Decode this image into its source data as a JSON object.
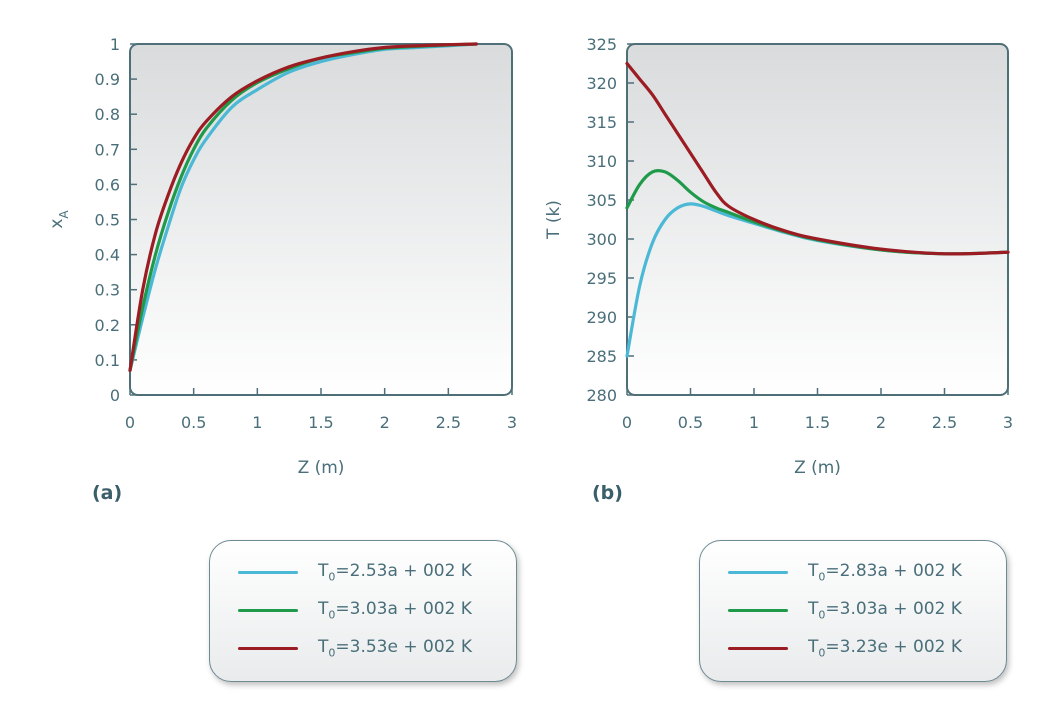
{
  "chart_data": [
    {
      "type": "line",
      "panel_label": "(a)",
      "xlabel": "Z (m)",
      "ylabel": "x",
      "ylabel_sub": "A",
      "xlim": [
        0,
        3
      ],
      "ylim": [
        0,
        1
      ],
      "xticks": [
        "0",
        "0.5",
        "1",
        "1.5",
        "2",
        "2.5",
        "3"
      ],
      "yticks": [
        "0",
        "0.1",
        "0.2",
        "0.3",
        "0.4",
        "0.5",
        "0.6",
        "0.7",
        "0.8",
        "0.9",
        "1"
      ],
      "x": [
        0,
        0.1,
        0.2,
        0.3,
        0.4,
        0.5,
        0.6,
        0.8,
        1.0,
        1.25,
        1.5,
        1.75,
        2.0,
        2.25,
        2.5,
        2.72
      ],
      "series": [
        {
          "name": "T0=2.53a + 002 K",
          "prefix": "T",
          "sub": "0",
          "rest": "=2.53a + 002 K",
          "color": "#4bb8d6",
          "values": [
            0.07,
            0.22,
            0.36,
            0.48,
            0.59,
            0.67,
            0.73,
            0.82,
            0.87,
            0.92,
            0.95,
            0.97,
            0.985,
            0.99,
            0.995,
            1.0
          ]
        },
        {
          "name": "T0=3.03a + 002 K",
          "prefix": "T",
          "sub": "0",
          "rest": "=3.03a + 002 K",
          "color": "#1f9a4a",
          "values": [
            0.07,
            0.25,
            0.4,
            0.52,
            0.62,
            0.7,
            0.76,
            0.84,
            0.89,
            0.93,
            0.96,
            0.975,
            0.988,
            0.993,
            0.997,
            1.0
          ]
        },
        {
          "name": "T0=3.53e + 002 K",
          "prefix": "T",
          "sub": "0",
          "rest": "=3.53e + 002 K",
          "color": "#9b1c22",
          "values": [
            0.07,
            0.3,
            0.46,
            0.57,
            0.66,
            0.73,
            0.78,
            0.85,
            0.895,
            0.935,
            0.96,
            0.978,
            0.99,
            0.995,
            0.998,
            1.0
          ]
        }
      ]
    },
    {
      "type": "line",
      "panel_label": "(b)",
      "xlabel": "Z (m)",
      "ylabel": "T (k)",
      "xlim": [
        0,
        3
      ],
      "ylim": [
        280,
        325
      ],
      "xticks": [
        "0",
        "0.5",
        "1",
        "1.5",
        "2",
        "2.5",
        "3"
      ],
      "yticks": [
        "280",
        "285",
        "290",
        "295",
        "300",
        "305",
        "310",
        "315",
        "320",
        "325"
      ],
      "x": [
        0,
        0.1,
        0.2,
        0.3,
        0.4,
        0.5,
        0.6,
        0.7,
        0.8,
        1.0,
        1.25,
        1.5,
        2.0,
        2.5,
        3.0
      ],
      "series": [
        {
          "name": "T0=2.83a + 002 K",
          "prefix": "T",
          "sub": "0",
          "rest": "=2.83a + 002 K",
          "color": "#4bb8d6",
          "values": [
            285,
            294,
            299.5,
            302.5,
            304,
            304.5,
            304.2,
            303.6,
            303,
            302,
            300.8,
            299.8,
            298.6,
            298.1,
            298.3
          ]
        },
        {
          "name": "T0=3.03a + 002 K",
          "prefix": "T",
          "sub": "0",
          "rest": "=3.03a + 002 K",
          "color": "#1f9a4a",
          "values": [
            304,
            307,
            308.6,
            308.6,
            307.5,
            306,
            304.8,
            304,
            303.4,
            302.2,
            300.9,
            299.9,
            298.6,
            298.1,
            298.3
          ]
        },
        {
          "name": "T0=3.23e + 002 K",
          "prefix": "T",
          "sub": "0",
          "rest": "=3.23e + 002 K",
          "color": "#9b1c22",
          "values": [
            322.5,
            320.5,
            318.5,
            316,
            313.5,
            311,
            308.5,
            306,
            304.2,
            302.5,
            301,
            300,
            298.7,
            298.1,
            298.3
          ]
        }
      ]
    }
  ]
}
